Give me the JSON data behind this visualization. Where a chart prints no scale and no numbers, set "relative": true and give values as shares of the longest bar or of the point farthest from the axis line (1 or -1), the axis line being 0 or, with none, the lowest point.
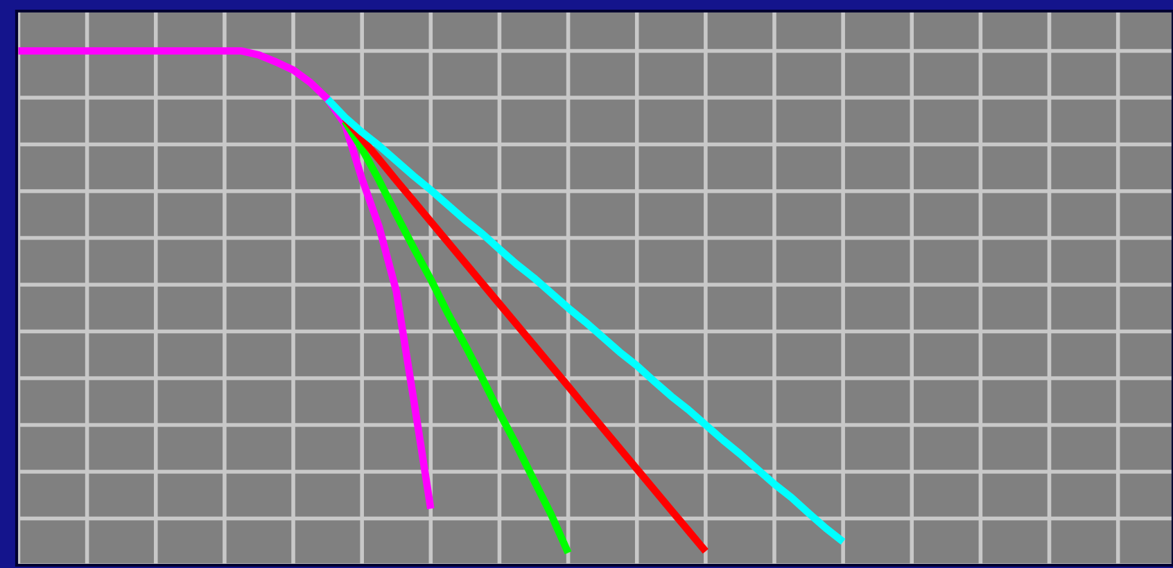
{
  "chart_data": {
    "type": "line",
    "relative": true,
    "grid": true,
    "marker": "none",
    "line_style": "solid",
    "categories": [
      null,
      null,
      null,
      null,
      null,
      null,
      null,
      null,
      null,
      null,
      null,
      null,
      null,
      null,
      null,
      null,
      null,
      null,
      null,
      null,
      null,
      null,
      null,
      null,
      null,
      null,
      null,
      null,
      null,
      null,
      null,
      null,
      null,
      null,
      null,
      null,
      null,
      null,
      null,
      null,
      null,
      null,
      null,
      null,
      null,
      null,
      null,
      null,
      null,
      null,
      null,
      null,
      null,
      null,
      null,
      null,
      null,
      null,
      null,
      null,
      null,
      null,
      null,
      null,
      null,
      null,
      null,
      null
    ],
    "series": [
      {
        "color": "#ff00ff",
        "values": [
          1,
          1,
          1,
          1,
          1,
          1,
          1,
          1,
          1,
          1,
          1,
          1,
          1,
          1,
          0.992,
          0.978,
          0.962,
          0.937,
          0.904,
          0.855,
          0.745,
          0.649,
          0.521,
          0.307,
          0.088,
          null,
          null,
          null,
          null,
          null,
          null,
          null,
          null,
          null,
          null,
          null,
          null,
          null,
          null,
          null,
          null,
          null,
          null,
          null,
          null,
          null,
          null,
          null,
          null,
          null,
          null,
          null,
          null,
          null,
          null,
          null,
          null,
          null,
          null,
          null,
          null,
          null,
          null,
          null,
          null,
          null,
          null,
          null
        ]
      },
      {
        "color": "#00ff00",
        "values": [
          null,
          null,
          null,
          null,
          null,
          null,
          null,
          null,
          null,
          null,
          null,
          null,
          null,
          null,
          null,
          null,
          null,
          null,
          null,
          0.86,
          0.805,
          0.742,
          0.674,
          0.608,
          0.545,
          0.477,
          0.414,
          0.348,
          0.279,
          0.214,
          0.145,
          0.077,
          0,
          null,
          null,
          null,
          null,
          null,
          null,
          null,
          null,
          null,
          null,
          null,
          null,
          null,
          null,
          null,
          null,
          null,
          null,
          null,
          null,
          null,
          null,
          null,
          null,
          null,
          null,
          null,
          null,
          null,
          null,
          null,
          null,
          null,
          null,
          null
        ]
      },
      {
        "color": "#ff0000",
        "values": [
          null,
          null,
          null,
          null,
          null,
          null,
          null,
          null,
          null,
          null,
          null,
          null,
          null,
          null,
          null,
          null,
          null,
          null,
          null,
          0.866,
          0.825,
          0.784,
          0.742,
          0.701,
          0.66,
          0.619,
          0.578,
          0.537,
          0.496,
          0.455,
          0.414,
          0.373,
          0.332,
          0.29,
          0.249,
          0.208,
          0.167,
          0.126,
          0.085,
          0.044,
          0.003,
          null,
          null,
          null,
          null,
          null,
          null,
          null,
          null,
          null,
          null,
          null,
          null,
          null,
          null,
          null,
          null,
          null,
          null,
          null,
          null,
          null,
          null,
          null,
          null,
          null,
          null,
          null
        ]
      },
      {
        "color": "#00ffff",
        "values": [
          null,
          null,
          null,
          null,
          null,
          null,
          null,
          null,
          null,
          null,
          null,
          null,
          null,
          null,
          null,
          null,
          null,
          null,
          0.904,
          0.868,
          0.838,
          0.811,
          0.781,
          0.751,
          0.723,
          0.693,
          0.663,
          0.636,
          0.605,
          0.575,
          0.548,
          0.518,
          0.488,
          0.46,
          0.43,
          0.4,
          0.373,
          0.342,
          0.312,
          0.285,
          0.255,
          0.225,
          0.197,
          0.167,
          0.137,
          0.11,
          0.079,
          0.049,
          0.022,
          null,
          null,
          null,
          null,
          null,
          null,
          null,
          null,
          null,
          null,
          null,
          null,
          null,
          null,
          null,
          null,
          null,
          null,
          null
        ]
      }
    ]
  }
}
